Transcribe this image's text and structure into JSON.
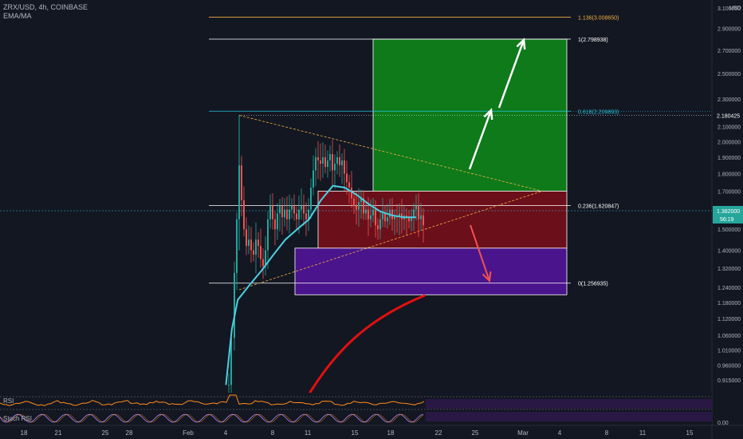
{
  "header": {
    "symbol_line": "ZRX/USD, 4h, COINBASE",
    "indicator_line": "EMA/MA"
  },
  "currency": "USD",
  "price": {
    "current": "1.382000",
    "countdown": "56:19",
    "line_color": "#26c6da"
  },
  "colors": {
    "background": "#131722",
    "bull": "#26a69a",
    "bear": "#ef5350",
    "ema": "#4dd0e1",
    "fib_gold": "#f5b041",
    "target_box": "#0e7a1a",
    "risk_box": "#6b0f1a",
    "support_box": "#4a148c",
    "rsi_line": "#ff8c1a",
    "stoch_k": "#b388ff"
  },
  "fib_levels": [
    {
      "ratio": "1.136",
      "value": 3.00865,
      "label": "1.136(3.008650)",
      "color": "#f5b041"
    },
    {
      "ratio": "1",
      "value": 2.798938,
      "label": "1(2.798938)",
      "color": "#ffffff"
    },
    {
      "ratio": "0.618",
      "value": 2.209893,
      "label": "0.618(2.209893)",
      "color": "#26c6da"
    },
    {
      "ratio": "0.236",
      "value": 1.620847,
      "label": "0.236(1.620847)",
      "color": "#ffffff"
    },
    {
      "ratio": "0",
      "value": 1.256935,
      "label": "0(1.256935)",
      "color": "#ffffff"
    }
  ],
  "extra_price_label": "2.180425",
  "indicators": {
    "rsi_label": "RSI",
    "stoch_label": "Stoch RSI",
    "stoch_tick": "0.00"
  },
  "chart_data": {
    "type": "candlestick",
    "title": "ZRX/USD, 4h, COINBASE",
    "y_scale": "log",
    "y_ticks": [
      "3.100000",
      "2.900000",
      "2.700000",
      "2.500000",
      "2.300000",
      "2.100000",
      "2.000000",
      "1.900000",
      "1.800000",
      "1.700000",
      "1.600000",
      "1.500000",
      "1.400000",
      "1.320000",
      "1.240000",
      "1.180000",
      "1.120000",
      "1.060000",
      "1.010000",
      "0.960000",
      "0.915000"
    ],
    "x_ticks": [
      "18",
      "21",
      "25",
      "28",
      "Feb",
      "4",
      "8",
      "11",
      "15",
      "18",
      "22",
      "25",
      "Mar",
      "4",
      "8",
      "11",
      "15"
    ],
    "boxes": [
      {
        "name": "target",
        "from": 1.7,
        "to": 2.798938,
        "start": "Feb 15",
        "end": "Mar 4"
      },
      {
        "name": "risk",
        "from": 1.41,
        "to": 1.7,
        "start": "Feb 11",
        "end": "Mar 4"
      },
      {
        "name": "support",
        "from": 1.21,
        "to": 1.41,
        "start": "Feb 9",
        "end": "Mar 4"
      }
    ],
    "ema": [
      {
        "x": "Feb 4",
        "y": 0.9
      },
      {
        "x": "Feb 4.5",
        "y": 1.08
      },
      {
        "x": "Feb 5",
        "y": 1.19
      },
      {
        "x": "Feb 6",
        "y": 1.25
      },
      {
        "x": "Feb 7",
        "y": 1.31
      },
      {
        "x": "Feb 8",
        "y": 1.38
      },
      {
        "x": "Feb 9",
        "y": 1.45
      },
      {
        "x": "Feb 10",
        "y": 1.5
      },
      {
        "x": "Feb 11",
        "y": 1.55
      },
      {
        "x": "Feb 12",
        "y": 1.65
      },
      {
        "x": "Feb 13",
        "y": 1.73
      },
      {
        "x": "Feb 14",
        "y": 1.72
      },
      {
        "x": "Feb 15",
        "y": 1.68
      },
      {
        "x": "Feb 16",
        "y": 1.63
      },
      {
        "x": "Feb 17",
        "y": 1.59
      },
      {
        "x": "Feb 18",
        "y": 1.57
      },
      {
        "x": "Feb 19",
        "y": 1.56
      },
      {
        "x": "Feb 20",
        "y": 1.56
      }
    ]
  }
}
